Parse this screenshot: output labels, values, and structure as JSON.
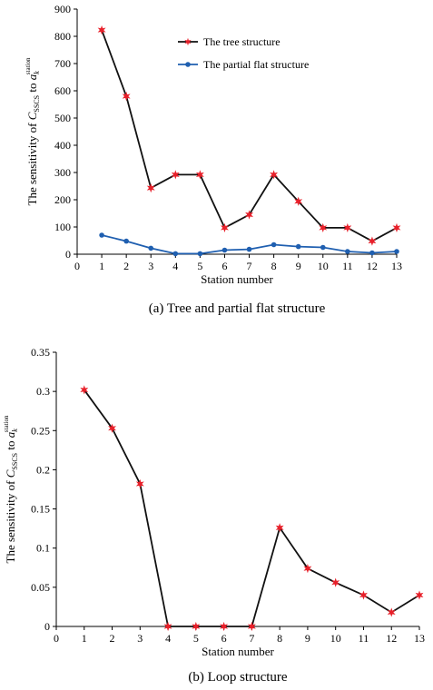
{
  "chart_data": [
    {
      "type": "line",
      "caption": "(a) Tree and partial flat structure",
      "xlabel": "Station number",
      "ylabel": "The sensitivity of C_SSCS to a_k^station",
      "ylabel_parts": {
        "prefix": "The sensitivity of ",
        "sym": "C",
        "sym_sub": "SSCS",
        "mid": " to ",
        "sym2": "a",
        "sym2_sup": "station",
        "sym2_sub": "k"
      },
      "xlim": [
        0,
        13
      ],
      "ylim": [
        0,
        900
      ],
      "x_ticks": [
        0,
        1,
        2,
        3,
        4,
        5,
        6,
        7,
        8,
        9,
        10,
        11,
        12,
        13
      ],
      "y_ticks": [
        0,
        100,
        200,
        300,
        400,
        500,
        600,
        700,
        800,
        900
      ],
      "legend_position": "top-right",
      "grid": false,
      "x": [
        1,
        2,
        3,
        4,
        5,
        6,
        7,
        8,
        9,
        10,
        11,
        12,
        13
      ],
      "series": [
        {
          "name": "The tree structure",
          "color": "#e8202a",
          "marker": "star",
          "values": [
            823,
            580,
            243,
            292,
            292,
            97,
            145,
            292,
            194,
            97,
            97,
            48,
            97
          ]
        },
        {
          "name": "The partial flat structure",
          "color": "#1f5fb0",
          "marker": "circle",
          "values": [
            70,
            48,
            22,
            2,
            2,
            15,
            18,
            35,
            28,
            25,
            10,
            5,
            10
          ]
        }
      ]
    },
    {
      "type": "line",
      "caption": "(b) Loop structure",
      "xlabel": "Station number",
      "ylabel": "The sensitivity of C_SSCS to a_k^station",
      "ylabel_parts": {
        "prefix": "The sensitivity of ",
        "sym": "C",
        "sym_sub": "SSCS",
        "mid": " to ",
        "sym2": "a",
        "sym2_sup": "station",
        "sym2_sub": "k"
      },
      "xlim": [
        0,
        13
      ],
      "ylim": [
        0,
        0.35
      ],
      "x_ticks": [
        0,
        1,
        2,
        3,
        4,
        5,
        6,
        7,
        8,
        9,
        10,
        11,
        12,
        13
      ],
      "y_ticks": [
        0,
        0.05,
        0.1,
        0.15,
        0.2,
        0.25,
        0.3,
        0.35
      ],
      "y_tick_labels": [
        "0",
        "0.05",
        "0.1",
        "0.15",
        "0.2",
        "0.25",
        "0.3",
        "0.35"
      ],
      "grid": false,
      "x": [
        1,
        2,
        3,
        4,
        5,
        6,
        7,
        8,
        9,
        10,
        11,
        12,
        13
      ],
      "series": [
        {
          "color": "#e8202a",
          "marker": "star",
          "values": [
            0.302,
            0.253,
            0.182,
            0,
            0,
            0,
            0,
            0.126,
            0.074,
            0.056,
            0.04,
            0.018,
            0.04
          ]
        }
      ]
    }
  ]
}
